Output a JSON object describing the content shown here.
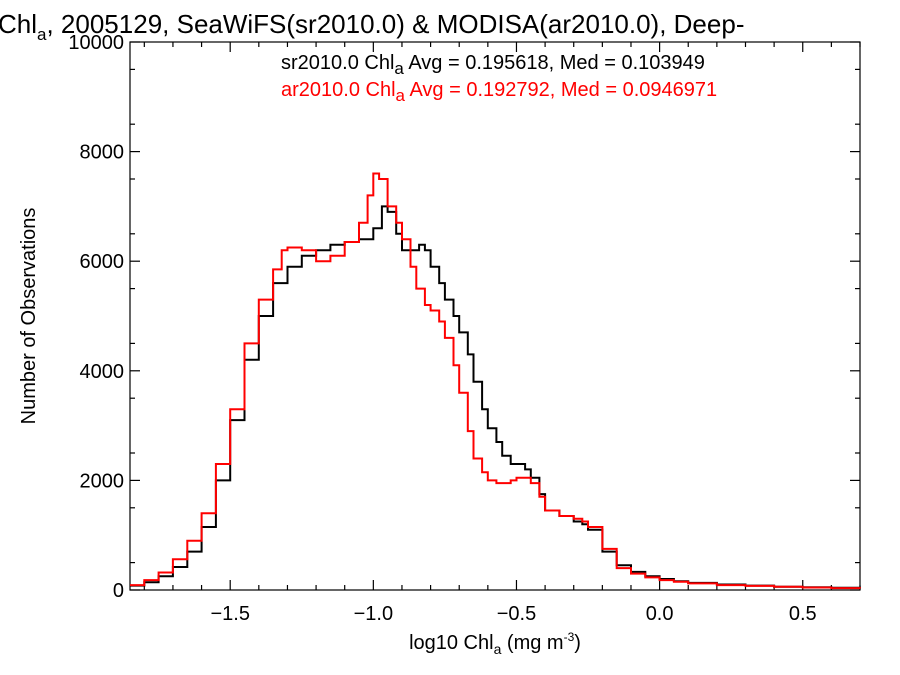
{
  "chart_data": {
    "type": "line",
    "title": {
      "prefix": "Chl",
      "subscript": "a",
      "suffix": ", 2005129, SeaWiFS(sr2010.0) & MODISA(ar2010.0), Deep-"
    },
    "xlabel": {
      "prefix": "log10 Chl",
      "subscript": "a",
      "units": " (mg m",
      "superscript": "-3",
      "close": ")"
    },
    "ylabel": "Number of Observations",
    "xlim": [
      -1.85,
      0.7
    ],
    "ylim": [
      0,
      10000
    ],
    "x_ticks": [
      {
        "value": -1.5,
        "label": "−1.5"
      },
      {
        "value": -1.0,
        "label": "−1.0"
      },
      {
        "value": -0.5,
        "label": "−0.5"
      },
      {
        "value": 0.0,
        "label": "0.0"
      },
      {
        "value": 0.5,
        "label": "0.5"
      }
    ],
    "y_ticks": [
      {
        "value": 0,
        "label": "0"
      },
      {
        "value": 2000,
        "label": "2000"
      },
      {
        "value": 4000,
        "label": "4000"
      },
      {
        "value": 6000,
        "label": "6000"
      },
      {
        "value": 8000,
        "label": "8000"
      },
      {
        "value": 10000,
        "label": "10000"
      }
    ],
    "grid": false,
    "legend_position": "top-right",
    "annotations": [
      {
        "series": "sr2010.0",
        "prefix": "sr2010.0 Chl",
        "subscript": "a",
        "suffix": " Avg = 0.195618, Med = 0.103949",
        "color": "#000000"
      },
      {
        "series": "ar2010.0",
        "prefix": "ar2010.0 Chl",
        "subscript": "a",
        "suffix": " Avg = 0.192792, Med = 0.0946971",
        "color": "#ff0000"
      }
    ],
    "series": [
      {
        "name": "sr2010.0",
        "color": "#000000",
        "points": [
          [
            -1.85,
            80
          ],
          [
            -1.8,
            140
          ],
          [
            -1.75,
            250
          ],
          [
            -1.7,
            420
          ],
          [
            -1.65,
            700
          ],
          [
            -1.6,
            1150
          ],
          [
            -1.55,
            2000
          ],
          [
            -1.5,
            3100
          ],
          [
            -1.45,
            4200
          ],
          [
            -1.4,
            5000
          ],
          [
            -1.35,
            5600
          ],
          [
            -1.3,
            5900
          ],
          [
            -1.25,
            6100
          ],
          [
            -1.2,
            6200
          ],
          [
            -1.15,
            6300
          ],
          [
            -1.1,
            6350
          ],
          [
            -1.05,
            6400
          ],
          [
            -1.0,
            6600
          ],
          [
            -0.97,
            7000
          ],
          [
            -0.95,
            6900
          ],
          [
            -0.92,
            6500
          ],
          [
            -0.9,
            6200
          ],
          [
            -0.87,
            6200
          ],
          [
            -0.84,
            6300
          ],
          [
            -0.82,
            6200
          ],
          [
            -0.8,
            5900
          ],
          [
            -0.77,
            5600
          ],
          [
            -0.75,
            5300
          ],
          [
            -0.72,
            5000
          ],
          [
            -0.7,
            4700
          ],
          [
            -0.67,
            4300
          ],
          [
            -0.65,
            3800
          ],
          [
            -0.62,
            3300
          ],
          [
            -0.6,
            2950
          ],
          [
            -0.57,
            2700
          ],
          [
            -0.55,
            2450
          ],
          [
            -0.52,
            2300
          ],
          [
            -0.5,
            2300
          ],
          [
            -0.47,
            2200
          ],
          [
            -0.45,
            2050
          ],
          [
            -0.42,
            1750
          ],
          [
            -0.4,
            1450
          ],
          [
            -0.35,
            1350
          ],
          [
            -0.3,
            1250
          ],
          [
            -0.27,
            1200
          ],
          [
            -0.25,
            1100
          ],
          [
            -0.2,
            700
          ],
          [
            -0.15,
            450
          ],
          [
            -0.1,
            330
          ],
          [
            -0.05,
            250
          ],
          [
            0.0,
            200
          ],
          [
            0.05,
            160
          ],
          [
            0.1,
            130
          ],
          [
            0.2,
            100
          ],
          [
            0.3,
            80
          ],
          [
            0.4,
            60
          ],
          [
            0.5,
            50
          ],
          [
            0.6,
            40
          ],
          [
            0.7,
            30
          ]
        ]
      },
      {
        "name": "ar2010.0",
        "color": "#ff0000",
        "points": [
          [
            -1.85,
            90
          ],
          [
            -1.8,
            180
          ],
          [
            -1.75,
            320
          ],
          [
            -1.7,
            560
          ],
          [
            -1.65,
            900
          ],
          [
            -1.6,
            1400
          ],
          [
            -1.55,
            2300
          ],
          [
            -1.5,
            3300
          ],
          [
            -1.45,
            4500
          ],
          [
            -1.4,
            5300
          ],
          [
            -1.35,
            5850
          ],
          [
            -1.32,
            6200
          ],
          [
            -1.3,
            6250
          ],
          [
            -1.25,
            6200
          ],
          [
            -1.2,
            6000
          ],
          [
            -1.15,
            6100
          ],
          [
            -1.1,
            6350
          ],
          [
            -1.05,
            6700
          ],
          [
            -1.02,
            7200
          ],
          [
            -1.0,
            7600
          ],
          [
            -0.98,
            7500
          ],
          [
            -0.95,
            7000
          ],
          [
            -0.92,
            6700
          ],
          [
            -0.9,
            6400
          ],
          [
            -0.87,
            5900
          ],
          [
            -0.85,
            5500
          ],
          [
            -0.82,
            5200
          ],
          [
            -0.8,
            5100
          ],
          [
            -0.77,
            4900
          ],
          [
            -0.75,
            4600
          ],
          [
            -0.72,
            4100
          ],
          [
            -0.7,
            3600
          ],
          [
            -0.67,
            2900
          ],
          [
            -0.65,
            2400
          ],
          [
            -0.62,
            2150
          ],
          [
            -0.6,
            2000
          ],
          [
            -0.57,
            1950
          ],
          [
            -0.55,
            1950
          ],
          [
            -0.52,
            2000
          ],
          [
            -0.5,
            2050
          ],
          [
            -0.47,
            2050
          ],
          [
            -0.45,
            1950
          ],
          [
            -0.42,
            1700
          ],
          [
            -0.4,
            1450
          ],
          [
            -0.35,
            1350
          ],
          [
            -0.3,
            1300
          ],
          [
            -0.27,
            1250
          ],
          [
            -0.25,
            1150
          ],
          [
            -0.2,
            750
          ],
          [
            -0.15,
            400
          ],
          [
            -0.1,
            300
          ],
          [
            -0.05,
            230
          ],
          [
            0.0,
            180
          ],
          [
            0.05,
            150
          ],
          [
            0.1,
            120
          ],
          [
            0.2,
            90
          ],
          [
            0.3,
            75
          ],
          [
            0.4,
            60
          ],
          [
            0.5,
            45
          ],
          [
            0.6,
            35
          ],
          [
            0.7,
            30
          ]
        ]
      }
    ]
  }
}
